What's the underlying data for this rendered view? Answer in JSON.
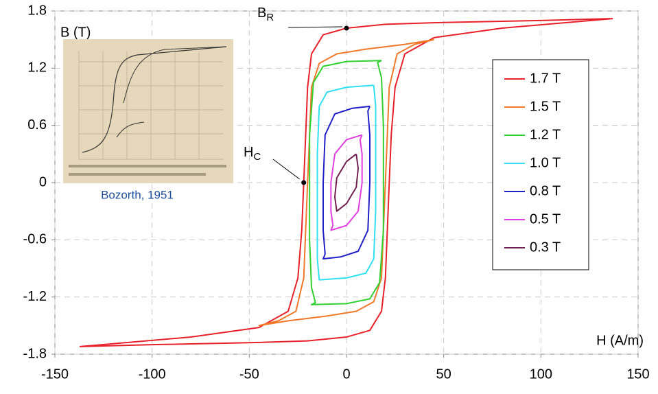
{
  "chart_data": {
    "type": "line",
    "xlabel": "H (A/m)",
    "ylabel": "B (T)",
    "xlim": [
      -150,
      150
    ],
    "xticks": [
      -150,
      -100,
      -50,
      0,
      50,
      100,
      150
    ],
    "ylim": [
      -1.8,
      1.8
    ],
    "yticks": [
      -1.8,
      -1.2,
      -0.6,
      0,
      0.6,
      1.2,
      1.8
    ],
    "grid": true,
    "legend": "right",
    "inset_caption": "Bozorth, 1951",
    "annotations": [
      {
        "text": "B",
        "sub": "R",
        "x": 0,
        "y": 1.62
      },
      {
        "text": "H",
        "sub": "C",
        "x": -22,
        "y": 0
      }
    ],
    "series": [
      {
        "name": "1.7 T",
        "color": "#e8202a",
        "x": [
          137,
          100,
          50,
          20,
          0,
          -12,
          -18,
          -20,
          -21,
          -22,
          -23,
          -25,
          -30,
          -45,
          -80,
          -137,
          -100,
          -50,
          -20,
          0,
          12,
          18,
          20,
          21,
          22,
          23,
          25,
          30,
          45,
          80,
          137
        ],
        "values": [
          1.72,
          1.7,
          1.68,
          1.66,
          1.62,
          1.55,
          1.35,
          1.0,
          0.5,
          0,
          -0.5,
          -1.0,
          -1.35,
          -1.52,
          -1.62,
          -1.72,
          -1.7,
          -1.68,
          -1.66,
          -1.62,
          -1.55,
          -1.35,
          -1.0,
          -0.5,
          0,
          0.5,
          1.0,
          1.35,
          1.52,
          1.62,
          1.72
        ]
      },
      {
        "name": "1.5 T",
        "color": "#f07828",
        "x": [
          45,
          30,
          10,
          -5,
          -14,
          -18,
          -19,
          -20,
          -21,
          -22,
          -26,
          -35,
          -45,
          -30,
          -10,
          5,
          14,
          18,
          19,
          20,
          21,
          22,
          26,
          35,
          45
        ],
        "values": [
          1.5,
          1.45,
          1.4,
          1.35,
          1.25,
          1.0,
          0.5,
          0,
          -0.5,
          -1.0,
          -1.35,
          -1.45,
          -1.5,
          -1.45,
          -1.4,
          -1.35,
          -1.25,
          -1.0,
          -0.5,
          0,
          0.5,
          1.0,
          1.35,
          1.45,
          1.5
        ]
      },
      {
        "name": "1.2 T",
        "color": "#30d030",
        "x": [
          18,
          0,
          -12,
          -17,
          -19,
          -19,
          -19,
          -18,
          -16,
          -18,
          0,
          12,
          17,
          19,
          19,
          19,
          18,
          16,
          18
        ],
        "values": [
          1.28,
          1.27,
          1.22,
          1.05,
          0.5,
          0,
          -0.6,
          -1.1,
          -1.26,
          -1.28,
          -1.27,
          -1.22,
          -1.05,
          -0.5,
          0,
          0.6,
          1.1,
          1.26,
          1.28
        ]
      },
      {
        "name": "1.0 T",
        "color": "#30e0f0",
        "x": [
          14,
          0,
          -10,
          -14,
          -15,
          -15,
          -15,
          -14,
          0,
          10,
          14,
          15,
          15,
          15,
          14
        ],
        "values": [
          1.02,
          1.0,
          0.95,
          0.8,
          0.3,
          -0.3,
          -0.8,
          -1.02,
          -1.0,
          -0.95,
          -0.8,
          -0.3,
          0.3,
          0.8,
          1.02
        ]
      },
      {
        "name": "0.8 T",
        "color": "#2020c8",
        "x": [
          12,
          3,
          -6,
          -11,
          -12,
          -12,
          -11,
          -12,
          -3,
          6,
          11,
          12,
          12,
          11,
          12
        ],
        "values": [
          0.8,
          0.78,
          0.72,
          0.5,
          0,
          -0.5,
          -0.75,
          -0.8,
          -0.78,
          -0.72,
          -0.5,
          0,
          0.5,
          0.75,
          0.8
        ]
      },
      {
        "name": "0.5 T",
        "color": "#e040e0",
        "x": [
          8,
          0,
          -6,
          -8,
          -8,
          -7,
          -8,
          0,
          6,
          8,
          8,
          7,
          8
        ],
        "values": [
          0.5,
          0.45,
          0.3,
          0,
          -0.3,
          -0.45,
          -0.5,
          -0.45,
          -0.3,
          0,
          0.3,
          0.45,
          0.5
        ]
      },
      {
        "name": "0.3 T",
        "color": "#702050",
        "x": [
          5,
          0,
          -5,
          -6,
          -5,
          0,
          5,
          6,
          5
        ],
        "values": [
          0.3,
          0.22,
          0.05,
          -0.15,
          -0.3,
          -0.22,
          -0.05,
          0.15,
          0.3
        ]
      }
    ]
  }
}
